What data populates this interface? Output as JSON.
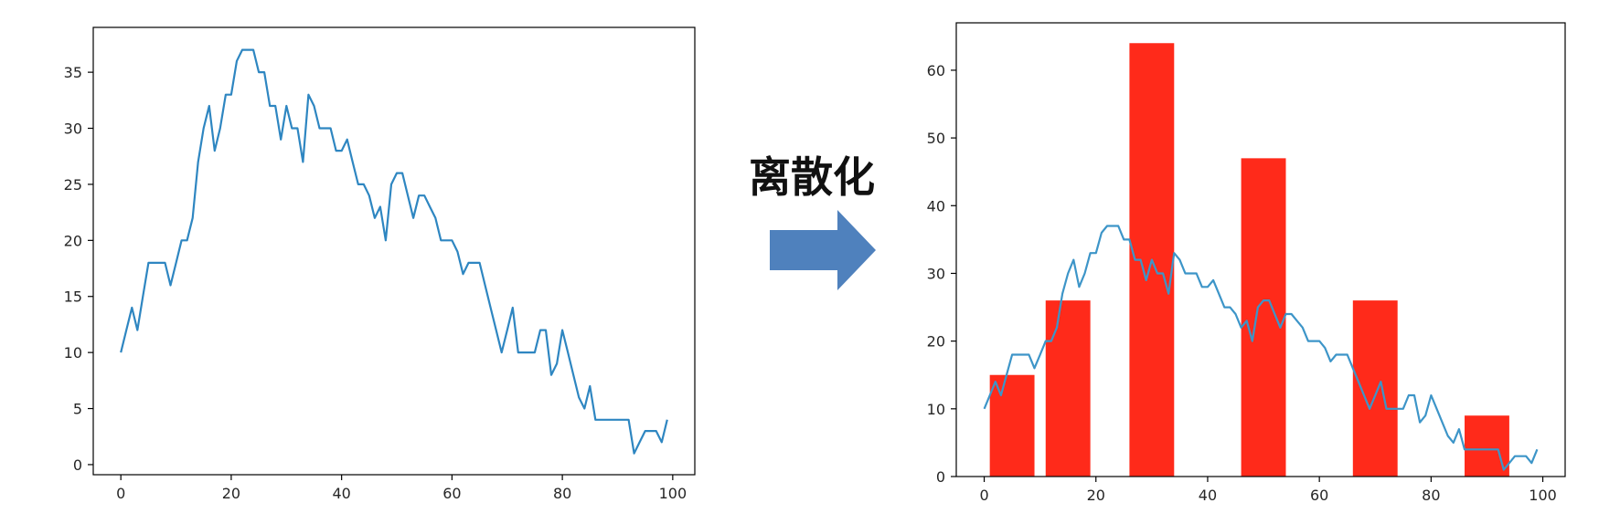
{
  "arrow": {
    "label": "离散化",
    "color": "#4f81bd"
  },
  "chart_data": [
    {
      "type": "line",
      "title": "",
      "xlabel": "",
      "ylabel": "",
      "xlim": [
        -5,
        104
      ],
      "ylim": [
        -0.9,
        39
      ],
      "xticks": [
        0,
        20,
        40,
        60,
        80,
        100
      ],
      "yticks": [
        0,
        5,
        10,
        15,
        20,
        25,
        30,
        35
      ],
      "grid": false,
      "legend": "none",
      "series": [
        {
          "color": "#2e86c1",
          "x": [
            0,
            1,
            2,
            3,
            4,
            5,
            6,
            7,
            8,
            9,
            10,
            11,
            12,
            13,
            14,
            15,
            16,
            17,
            18,
            19,
            20,
            21,
            22,
            23,
            24,
            25,
            26,
            27,
            28,
            29,
            30,
            31,
            32,
            33,
            34,
            35,
            36,
            37,
            38,
            39,
            40,
            41,
            42,
            43,
            44,
            45,
            46,
            47,
            48,
            49,
            50,
            51,
            52,
            53,
            54,
            55,
            56,
            57,
            58,
            59,
            60,
            61,
            62,
            63,
            64,
            65,
            66,
            67,
            68,
            69,
            70,
            71,
            72,
            73,
            74,
            75,
            76,
            77,
            78,
            79,
            80,
            81,
            82,
            83,
            84,
            85,
            86,
            87,
            88,
            89,
            90,
            91,
            92,
            93,
            94,
            95,
            96,
            97,
            98,
            99
          ],
          "y": [
            10,
            12,
            14,
            12,
            15,
            18,
            18,
            18,
            18,
            16,
            18,
            20,
            20,
            22,
            27,
            30,
            32,
            28,
            30,
            33,
            33,
            36,
            37,
            37,
            37,
            35,
            35,
            32,
            32,
            29,
            32,
            30,
            30,
            27,
            33,
            32,
            30,
            30,
            30,
            28,
            28,
            29,
            27,
            25,
            25,
            24,
            22,
            23,
            20,
            25,
            26,
            26,
            24,
            22,
            24,
            24,
            23,
            22,
            20,
            20,
            20,
            19,
            17,
            18,
            18,
            18,
            16,
            14,
            12,
            10,
            12,
            14,
            10,
            10,
            10,
            10,
            12,
            12,
            8,
            9,
            12,
            10,
            8,
            6,
            5,
            7,
            4,
            4,
            4,
            4,
            4,
            4,
            4,
            1,
            2,
            3,
            3,
            3,
            2,
            4
          ]
        }
      ]
    },
    {
      "type": "bar",
      "title": "",
      "xlabel": "",
      "ylabel": "",
      "xlim": [
        -5,
        104
      ],
      "ylim": [
        0,
        67
      ],
      "xticks": [
        0,
        20,
        40,
        60,
        80,
        100
      ],
      "yticks": [
        0,
        10,
        20,
        30,
        40,
        50,
        60
      ],
      "grid": false,
      "legend": "none",
      "bars": {
        "color": "#ff2a1a",
        "width": 8,
        "x": [
          5,
          15,
          30,
          50,
          70,
          90
        ],
        "values": [
          15,
          26,
          64,
          47,
          26,
          9
        ]
      },
      "series": [
        {
          "color": "#3d95c8",
          "x": [
            0,
            1,
            2,
            3,
            4,
            5,
            6,
            7,
            8,
            9,
            10,
            11,
            12,
            13,
            14,
            15,
            16,
            17,
            18,
            19,
            20,
            21,
            22,
            23,
            24,
            25,
            26,
            27,
            28,
            29,
            30,
            31,
            32,
            33,
            34,
            35,
            36,
            37,
            38,
            39,
            40,
            41,
            42,
            43,
            44,
            45,
            46,
            47,
            48,
            49,
            50,
            51,
            52,
            53,
            54,
            55,
            56,
            57,
            58,
            59,
            60,
            61,
            62,
            63,
            64,
            65,
            66,
            67,
            68,
            69,
            70,
            71,
            72,
            73,
            74,
            75,
            76,
            77,
            78,
            79,
            80,
            81,
            82,
            83,
            84,
            85,
            86,
            87,
            88,
            89,
            90,
            91,
            92,
            93,
            94,
            95,
            96,
            97,
            98,
            99
          ],
          "y": [
            10,
            12,
            14,
            12,
            15,
            18,
            18,
            18,
            18,
            16,
            18,
            20,
            20,
            22,
            27,
            30,
            32,
            28,
            30,
            33,
            33,
            36,
            37,
            37,
            37,
            35,
            35,
            32,
            32,
            29,
            32,
            30,
            30,
            27,
            33,
            32,
            30,
            30,
            30,
            28,
            28,
            29,
            27,
            25,
            25,
            24,
            22,
            23,
            20,
            25,
            26,
            26,
            24,
            22,
            24,
            24,
            23,
            22,
            20,
            20,
            20,
            19,
            17,
            18,
            18,
            18,
            16,
            14,
            12,
            10,
            12,
            14,
            10,
            10,
            10,
            10,
            12,
            12,
            8,
            9,
            12,
            10,
            8,
            6,
            5,
            7,
            4,
            4,
            4,
            4,
            4,
            4,
            4,
            1,
            2,
            3,
            3,
            3,
            2,
            4
          ]
        }
      ]
    }
  ]
}
